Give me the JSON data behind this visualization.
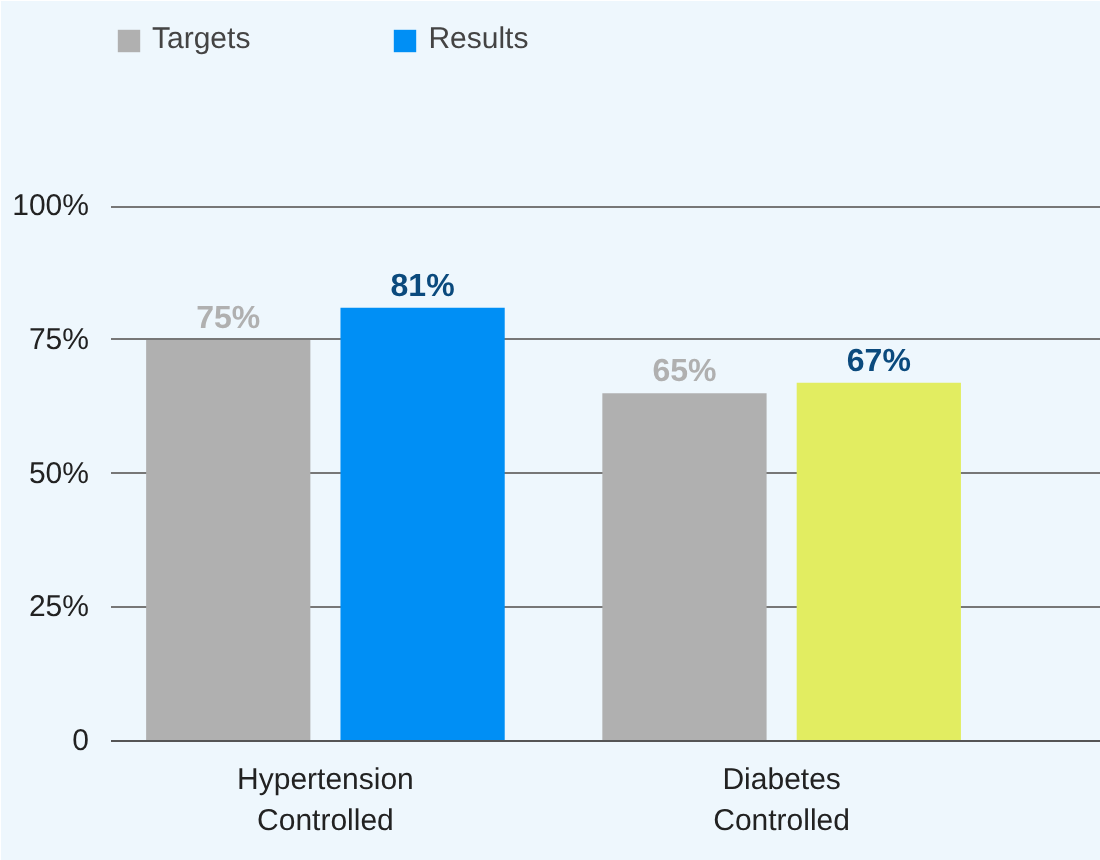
{
  "chart_data": {
    "type": "bar",
    "categories": [
      "Hypertension\nControlled",
      "Diabetes\nControlled"
    ],
    "series": [
      {
        "name": "Targets",
        "color": "#b0b0b0",
        "colors": [
          "#b0b0b0",
          "#b0b0b0"
        ],
        "values": [
          75,
          65
        ],
        "value_labels": [
          "75%",
          "65%"
        ]
      },
      {
        "name": "Results",
        "color": "#0b4a7d",
        "colors": [
          "#008ff5",
          "#e2ed61"
        ],
        "values": [
          81,
          67
        ],
        "value_labels": [
          "81%",
          "67%"
        ]
      }
    ],
    "ylim": [
      0,
      135
    ],
    "yticks": [
      {
        "value": 0,
        "label": "0"
      },
      {
        "value": 25,
        "label": "25%"
      },
      {
        "value": 50,
        "label": "50%"
      },
      {
        "value": 75,
        "label": "75%"
      },
      {
        "value": 100,
        "label": "100%"
      }
    ],
    "grid": "y",
    "legend": "top left"
  }
}
